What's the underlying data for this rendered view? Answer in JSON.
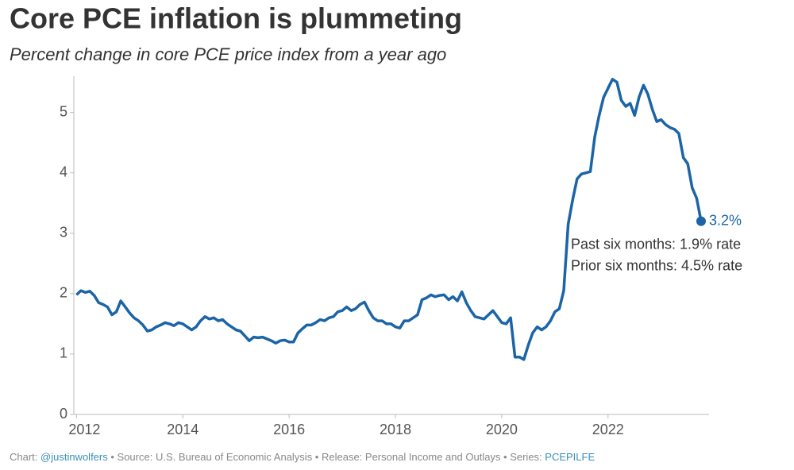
{
  "chart_data": {
    "type": "line",
    "title": "Core PCE inflation is plummeting",
    "subtitle": "Percent change in core PCE price index from a year ago",
    "x": [
      2012,
      2012.083,
      2012.167,
      2012.25,
      2012.333,
      2012.417,
      2012.5,
      2012.583,
      2012.667,
      2012.75,
      2012.833,
      2012.917,
      2013,
      2013.083,
      2013.167,
      2013.25,
      2013.333,
      2013.417,
      2013.5,
      2013.583,
      2013.667,
      2013.75,
      2013.833,
      2013.917,
      2014,
      2014.083,
      2014.167,
      2014.25,
      2014.333,
      2014.417,
      2014.5,
      2014.583,
      2014.667,
      2014.75,
      2014.833,
      2014.917,
      2015,
      2015.083,
      2015.167,
      2015.25,
      2015.333,
      2015.417,
      2015.5,
      2015.583,
      2015.667,
      2015.75,
      2015.833,
      2015.917,
      2016,
      2016.083,
      2016.167,
      2016.25,
      2016.333,
      2016.417,
      2016.5,
      2016.583,
      2016.667,
      2016.75,
      2016.833,
      2016.917,
      2017,
      2017.083,
      2017.167,
      2017.25,
      2017.333,
      2017.417,
      2017.5,
      2017.583,
      2017.667,
      2017.75,
      2017.833,
      2017.917,
      2018,
      2018.083,
      2018.167,
      2018.25,
      2018.333,
      2018.417,
      2018.5,
      2018.583,
      2018.667,
      2018.75,
      2018.833,
      2018.917,
      2019,
      2019.083,
      2019.167,
      2019.25,
      2019.333,
      2019.417,
      2019.5,
      2019.583,
      2019.667,
      2019.75,
      2019.833,
      2019.917,
      2020,
      2020.083,
      2020.167,
      2020.25,
      2020.333,
      2020.417,
      2020.5,
      2020.583,
      2020.667,
      2020.75,
      2020.833,
      2020.917,
      2021,
      2021.083,
      2021.167,
      2021.25,
      2021.333,
      2021.417,
      2021.5,
      2021.583,
      2021.667,
      2021.75,
      2021.833,
      2021.917,
      2022,
      2022.083,
      2022.167,
      2022.25,
      2022.333,
      2022.417,
      2022.5,
      2022.583,
      2022.667,
      2022.75,
      2022.833,
      2022.917,
      2023,
      2023.083,
      2023.167,
      2023.25,
      2023.333,
      2023.417,
      2023.5,
      2023.583,
      2023.667,
      2023.75
    ],
    "series": [
      {
        "name": "Core PCE",
        "color": "#1b64a6",
        "values": [
          1.98,
          2.05,
          2.02,
          2.04,
          1.97,
          1.85,
          1.82,
          1.78,
          1.65,
          1.7,
          1.88,
          1.78,
          1.68,
          1.6,
          1.55,
          1.48,
          1.38,
          1.4,
          1.45,
          1.48,
          1.52,
          1.5,
          1.47,
          1.52,
          1.5,
          1.45,
          1.4,
          1.45,
          1.55,
          1.62,
          1.58,
          1.6,
          1.55,
          1.57,
          1.5,
          1.45,
          1.4,
          1.38,
          1.3,
          1.22,
          1.28,
          1.27,
          1.28,
          1.25,
          1.22,
          1.18,
          1.22,
          1.23,
          1.2,
          1.2,
          1.35,
          1.42,
          1.48,
          1.48,
          1.52,
          1.57,
          1.55,
          1.6,
          1.62,
          1.7,
          1.72,
          1.78,
          1.72,
          1.75,
          1.82,
          1.86,
          1.72,
          1.6,
          1.55,
          1.55,
          1.5,
          1.5,
          1.45,
          1.43,
          1.55,
          1.55,
          1.6,
          1.65,
          1.9,
          1.93,
          1.98,
          1.95,
          1.97,
          1.98,
          1.9,
          1.95,
          1.88,
          2.03,
          1.85,
          1.72,
          1.62,
          1.6,
          1.58,
          1.65,
          1.72,
          1.62,
          1.52,
          1.5,
          1.6,
          0.95,
          0.95,
          0.91,
          1.15,
          1.35,
          1.45,
          1.4,
          1.45,
          1.55,
          1.7,
          1.75,
          2.05,
          3.15,
          3.55,
          3.9,
          3.98,
          4.0,
          4.02,
          4.6,
          4.95,
          5.25,
          5.4,
          5.55,
          5.5,
          5.2,
          5.1,
          5.15,
          4.95,
          5.25,
          5.45,
          5.3,
          5.05,
          4.85,
          4.88,
          4.8,
          4.75,
          4.72,
          4.65,
          4.25,
          4.15,
          3.75,
          3.58,
          3.2
        ]
      }
    ],
    "end_label": "3.2%",
    "annotations": [
      "Past six months: 1.9% rate",
      "Prior six months: 4.5% rate"
    ],
    "xlim": [
      2011.95,
      2023.9
    ],
    "ylim": [
      0,
      5.6
    ],
    "xticks": [
      2012,
      2014,
      2016,
      2018,
      2020,
      2022
    ],
    "yticks": [
      0,
      1,
      2,
      3,
      4,
      5
    ],
    "footer": [
      "Chart: ",
      "@justinwolfers",
      " • Source: U.S. Bureau of Economic Analysis • Release: Personal Income and Outlays • Series: ",
      "PCEPILFE"
    ]
  }
}
